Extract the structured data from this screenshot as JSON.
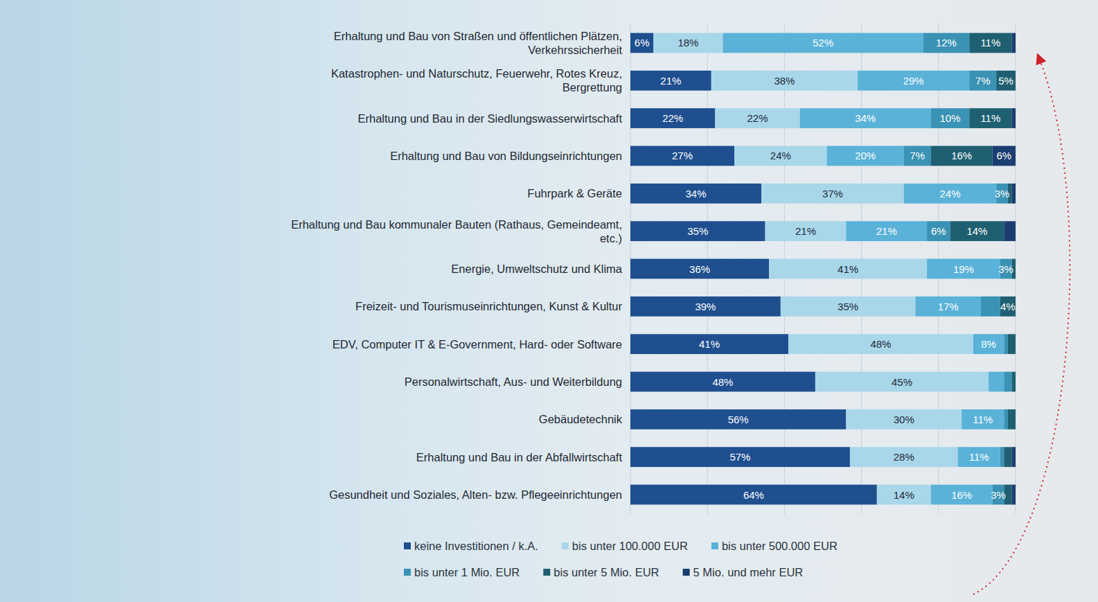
{
  "chart_data": {
    "type": "bar",
    "orientation": "horizontal",
    "stacked": true,
    "data_labels": true,
    "grid": true,
    "tick_labels": false,
    "legend": "bottom",
    "xlim": [
      0,
      100
    ],
    "xticks": [
      0,
      20,
      40,
      60,
      80,
      100
    ],
    "categories": [
      "Erhaltung und Bau von Straßen und öffentlichen Plätzen, Verkehrssicherheit",
      "Katastrophen- und Naturschutz, Feuerwehr, Rotes Kreuz, Bergrettung",
      "Erhaltung und Bau in der Siedlungswasserwirtschaft",
      "Erhaltung und Bau von Bildungseinrichtungen",
      "Fuhrpark & Geräte",
      "Erhaltung und Bau kommunaler Bauten (Rathaus, Gemeindeamt, etc.)",
      "Energie, Umweltschutz und Klima",
      "Freizeit- und Tourismuseinrichtungen, Kunst & Kultur",
      "EDV, Computer IT & E-Government, Hard- oder Software",
      "Personalwirtschaft, Aus- und Weiterbildung",
      "Gebäudetechnik",
      "Erhaltung und Bau in der Abfallwirtschaft",
      "Gesundheit und Soziales, Alten- bzw. Pflegeeinrichtungen"
    ],
    "series": [
      {
        "name": "keine Investitionen / k.A.",
        "color": "#1f4f8f",
        "values": [
          6,
          21,
          22,
          27,
          34,
          35,
          36,
          39,
          41,
          48,
          56,
          57,
          64
        ],
        "value_labels": [
          "6%",
          "21%",
          "22%",
          "27%",
          "34%",
          "35%",
          "36%",
          "39%",
          "41%",
          "48%",
          "56%",
          "57%",
          "64%"
        ]
      },
      {
        "name": "bis unter 100.000 EUR",
        "color": "#a9d7ea",
        "values": [
          18,
          38,
          22,
          24,
          37,
          21,
          41,
          35,
          48,
          45,
          30,
          28,
          14
        ],
        "value_labels": [
          "18%",
          "38%",
          "22%",
          "24%",
          "37%",
          "21%",
          "41%",
          "35%",
          "48%",
          "45%",
          "30%",
          "28%",
          "14%"
        ]
      },
      {
        "name": "bis unter 500.000 EUR",
        "color": "#5ab2d8",
        "values": [
          52,
          29,
          34,
          20,
          24,
          21,
          19,
          17,
          8,
          4,
          11,
          11,
          16
        ],
        "value_labels": [
          "52%",
          "29%",
          "34%",
          "20%",
          "24%",
          "21%",
          "19%",
          "17%",
          "8%",
          null,
          "11%",
          "11%",
          "16%"
        ]
      },
      {
        "name": "bis unter 1 Mio. EUR",
        "color": "#3a92b4",
        "values": [
          12,
          7,
          10,
          7,
          3,
          6,
          3,
          5,
          1,
          2,
          1,
          1,
          3
        ],
        "value_labels": [
          "12%",
          "7%",
          "10%",
          "7%",
          "3%",
          "6%",
          "3%",
          null,
          null,
          null,
          null,
          null,
          "3%"
        ]
      },
      {
        "name": "bis unter 5 Mio. EUR",
        "color": "#1f5f72",
        "values": [
          11,
          5,
          11,
          16,
          1,
          14,
          1,
          4,
          2,
          1,
          2,
          2,
          2
        ],
        "value_labels": [
          "11%",
          "5%",
          "11%",
          "16%",
          null,
          "14%",
          null,
          "4%",
          null,
          null,
          null,
          null,
          null
        ]
      },
      {
        "name": "5 Mio. und mehr EUR",
        "color": "#1b3d70",
        "values": [
          1,
          0,
          1,
          6,
          1,
          3,
          0,
          0,
          0,
          0,
          0,
          1,
          1
        ],
        "value_labels": [
          null,
          null,
          null,
          "6%",
          null,
          null,
          null,
          null,
          null,
          null,
          null,
          null,
          null
        ]
      }
    ]
  }
}
